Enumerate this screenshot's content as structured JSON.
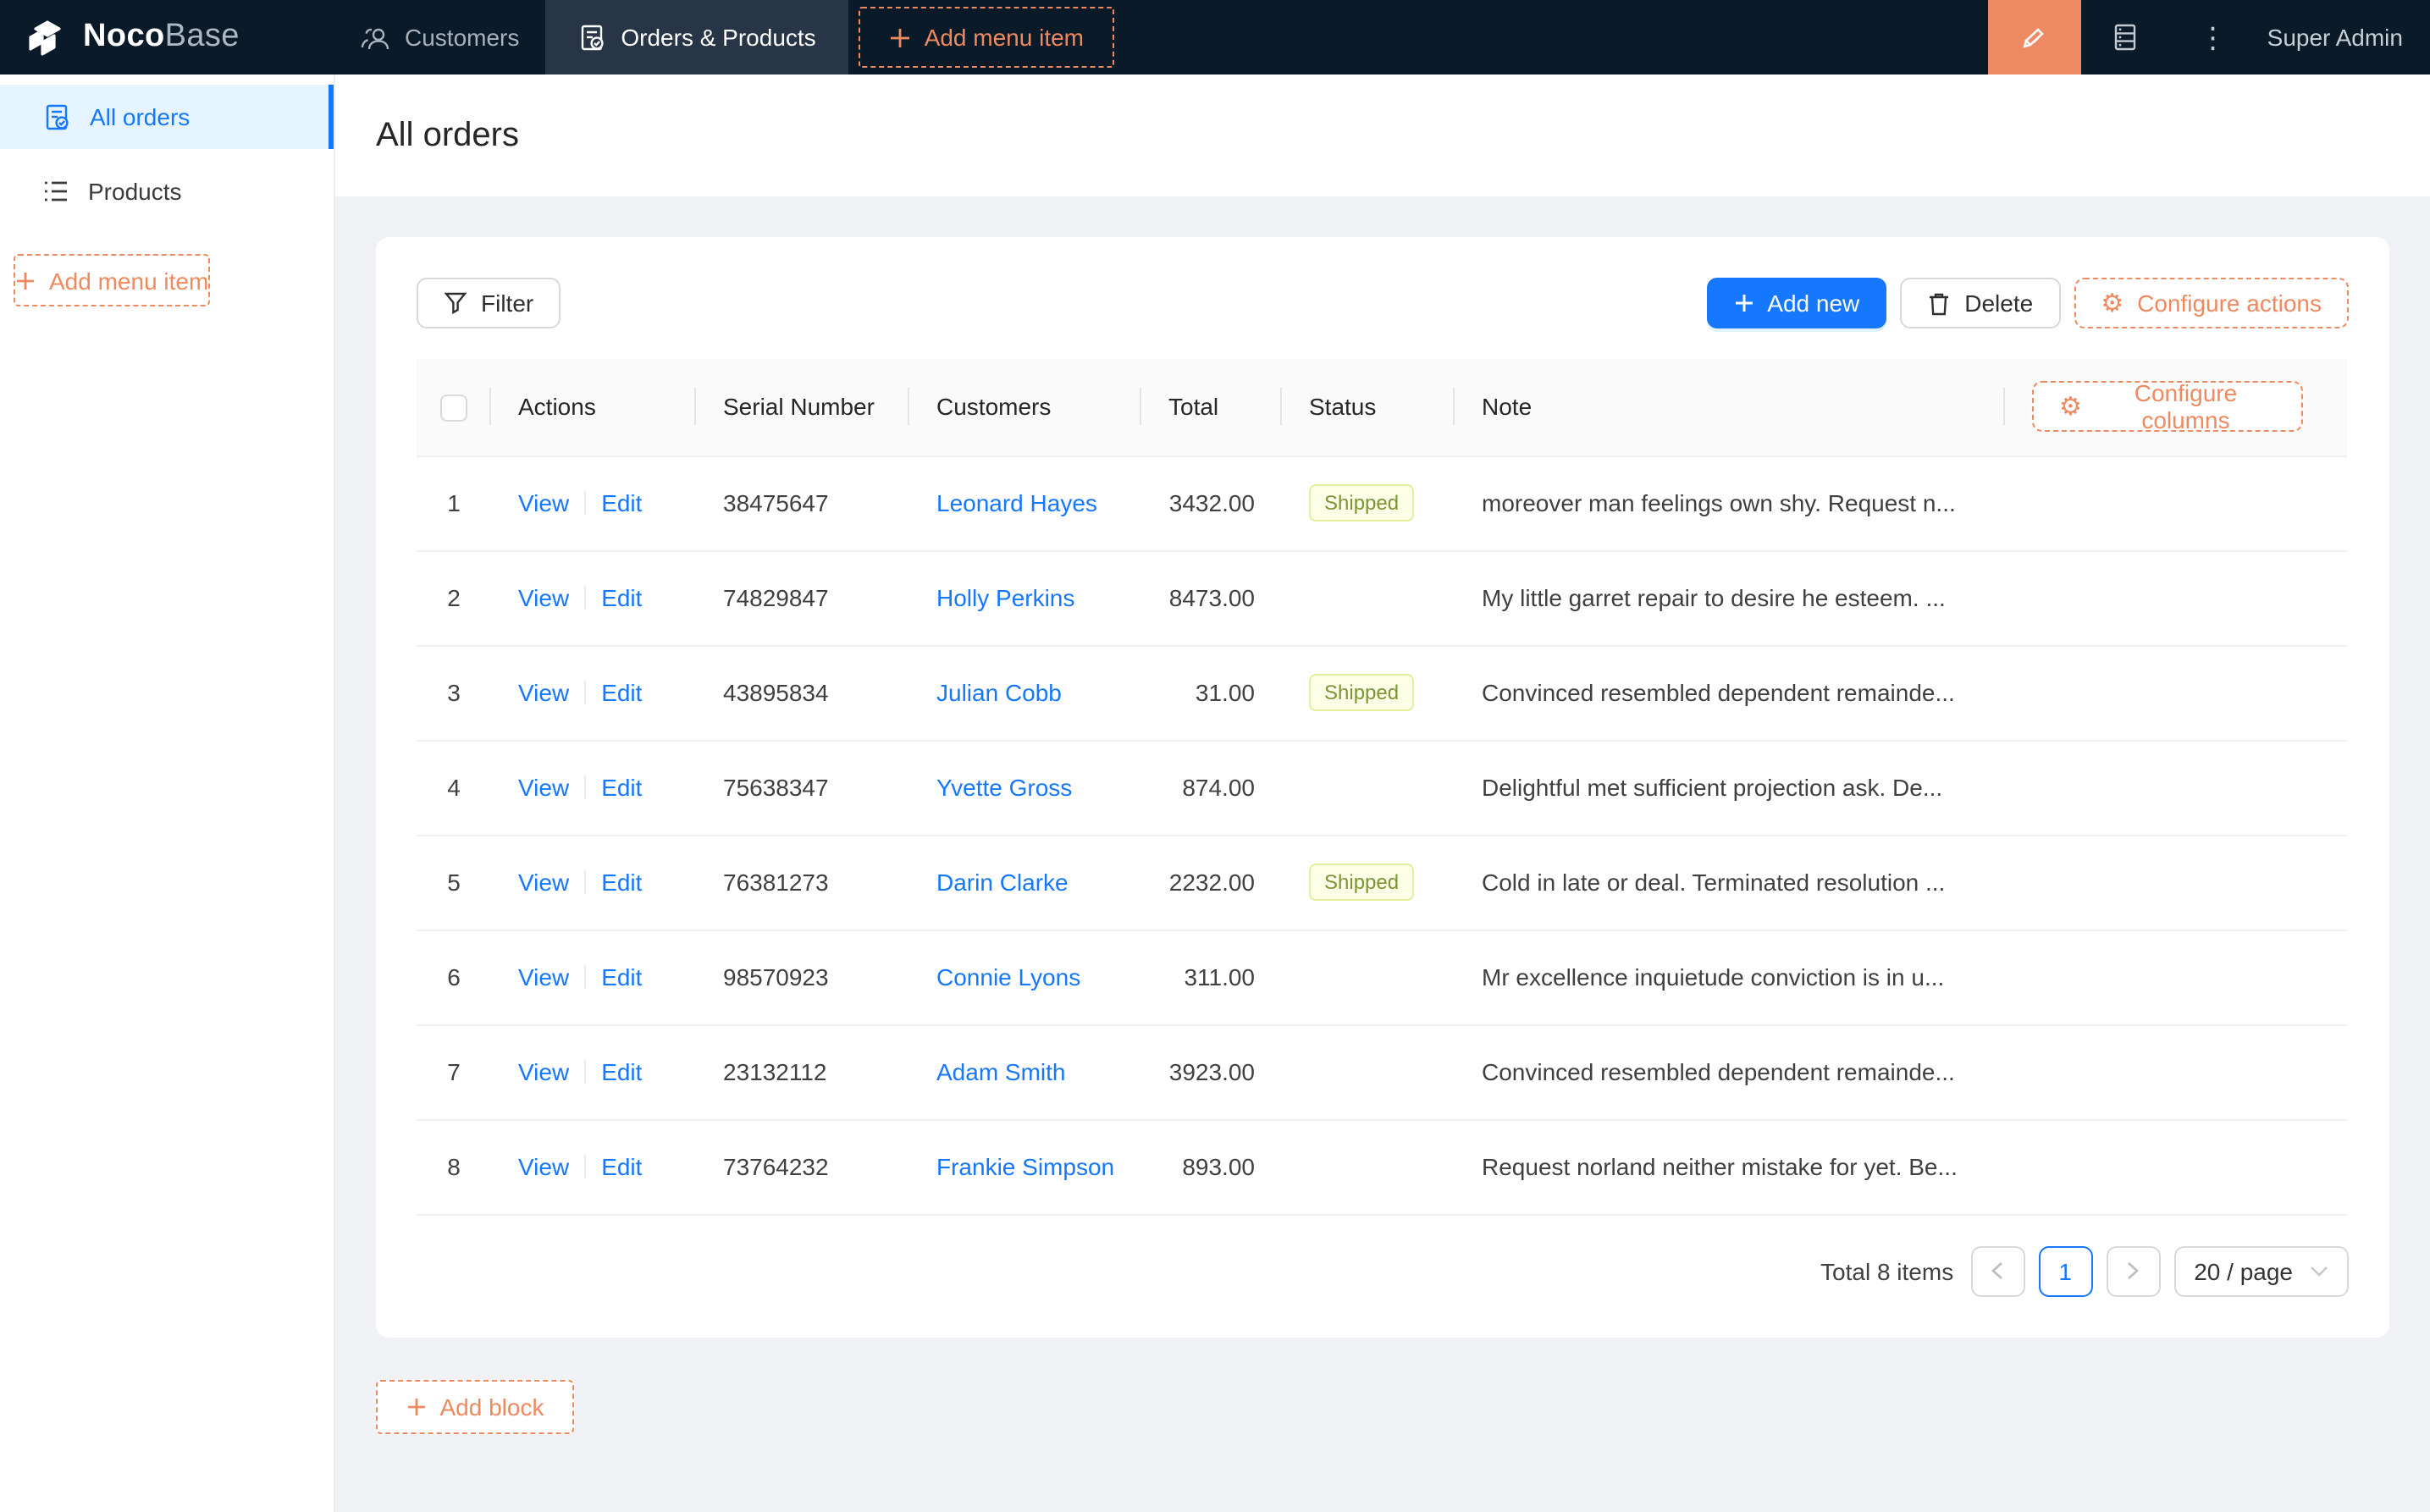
{
  "header": {
    "logo_primary": "Noco",
    "logo_secondary": "Base",
    "tabs": [
      {
        "label": "Customers",
        "active": false
      },
      {
        "label": "Orders & Products",
        "active": true
      }
    ],
    "add_menu_item_label": "Add menu item",
    "user_name": "Super Admin"
  },
  "sidebar": {
    "items": [
      {
        "label": "All orders",
        "active": true
      },
      {
        "label": "Products",
        "active": false
      }
    ],
    "add_menu_item_label": "Add menu item"
  },
  "page": {
    "title": "All orders",
    "toolbar": {
      "filter_label": "Filter",
      "add_new_label": "Add new",
      "delete_label": "Delete",
      "configure_actions_label": "Configure actions",
      "configure_columns_label": "Configure columns"
    },
    "table": {
      "columns": [
        "Actions",
        "Serial Number",
        "Customers",
        "Total",
        "Status",
        "Note"
      ],
      "action_links": [
        "View",
        "Edit"
      ],
      "rows": [
        {
          "index": "1",
          "serial": "38475647",
          "customer": "Leonard Hayes",
          "total": "3432.00",
          "status": "Shipped",
          "note": "moreover man feelings own shy. Request n..."
        },
        {
          "index": "2",
          "serial": "74829847",
          "customer": "Holly Perkins",
          "total": "8473.00",
          "status": "",
          "note": "My little garret repair to desire he esteem. ..."
        },
        {
          "index": "3",
          "serial": "43895834",
          "customer": "Julian Cobb",
          "total": "31.00",
          "status": "Shipped",
          "note": "Convinced resembled dependent remainde..."
        },
        {
          "index": "4",
          "serial": "75638347",
          "customer": "Yvette Gross",
          "total": "874.00",
          "status": "",
          "note": "Delightful met sufficient projection ask. De..."
        },
        {
          "index": "5",
          "serial": "76381273",
          "customer": "Darin Clarke",
          "total": "2232.00",
          "status": "Shipped",
          "note": "Cold in late or deal. Terminated resolution ..."
        },
        {
          "index": "6",
          "serial": "98570923",
          "customer": "Connie Lyons",
          "total": "311.00",
          "status": "",
          "note": "Mr excellence inquietude conviction is in u..."
        },
        {
          "index": "7",
          "serial": "23132112",
          "customer": "Adam Smith",
          "total": "3923.00",
          "status": "",
          "note": "Convinced resembled dependent remainde..."
        },
        {
          "index": "8",
          "serial": "73764232",
          "customer": "Frankie Simpson",
          "total": "893.00",
          "status": "",
          "note": "Request norland neither mistake for yet. Be..."
        }
      ]
    },
    "pagination": {
      "total_text": "Total 8 items",
      "current_page": "1",
      "page_size": "20 / page"
    },
    "add_block_label": "Add block"
  },
  "colors": {
    "accent_orange": "#ee8a60",
    "primary_blue": "#1677ff",
    "header_dark": "#0b1a29",
    "sidebar_active_bg": "#e6f4ff",
    "tag_shipped_bg": "#fcffe6",
    "tag_shipped_border": "#e3ee9e",
    "tag_shipped_text": "#7d9437"
  },
  "icon_names": [
    "nocobase-logo-icon",
    "team-icon",
    "file-done-icon",
    "plus-icon",
    "highlighter-icon",
    "database-icon",
    "kebab-menu-icon",
    "unordered-list-icon",
    "filter-icon",
    "trash-icon",
    "gear-icon",
    "chevron-left-icon",
    "chevron-right-icon",
    "chevron-down-icon"
  ]
}
